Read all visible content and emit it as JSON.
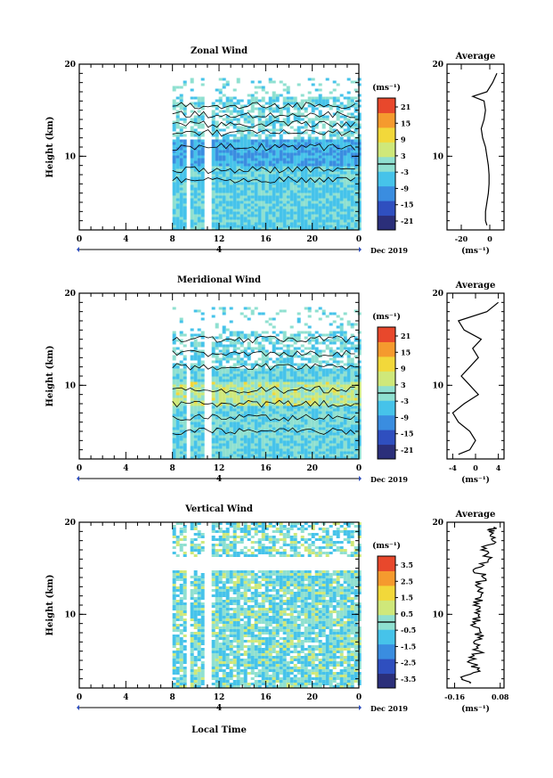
{
  "panels": [
    {
      "key": "zonal",
      "title": "Zonal Wind",
      "ylabel": "Height (km)",
      "yticks": [
        "20",
        "10"
      ],
      "xticks": [
        "0",
        "4",
        "8",
        "12",
        "16",
        "20",
        "0"
      ],
      "date_marker": "4",
      "date_label": "Dec 2019",
      "colorbar": {
        "unit": "(ms⁻¹)",
        "ticks": [
          "21",
          "15",
          "9",
          "3",
          "-3",
          "-9",
          "-15",
          "-21"
        ]
      },
      "average": {
        "title": "Average",
        "yticks": [
          "20",
          "10"
        ],
        "xticks": [
          "-20",
          "0"
        ],
        "unit": "(ms⁻¹)"
      }
    },
    {
      "key": "meridional",
      "title": "Meridional Wind",
      "ylabel": "Height (km)",
      "yticks": [
        "20",
        "10"
      ],
      "xticks": [
        "0",
        "4",
        "8",
        "12",
        "16",
        "20",
        "0"
      ],
      "date_marker": "4",
      "date_label": "Dec 2019",
      "colorbar": {
        "unit": "(ms⁻¹)",
        "ticks": [
          "21",
          "15",
          "9",
          "3",
          "-3",
          "-9",
          "-15",
          "-21"
        ]
      },
      "average": {
        "title": "Average",
        "yticks": [
          "20",
          "10"
        ],
        "xticks": [
          "-4",
          "0",
          "4"
        ],
        "unit": "(ms⁻¹)"
      }
    },
    {
      "key": "vertical",
      "title": "Vertical Wind",
      "ylabel": "Height (km)",
      "yticks": [
        "20",
        "10"
      ],
      "xticks": [
        "0",
        "4",
        "8",
        "12",
        "16",
        "20",
        "0"
      ],
      "date_marker": "4",
      "date_label": "Dec 2019",
      "colorbar": {
        "unit": "(ms⁻¹)",
        "ticks": [
          "3.5",
          "2.5",
          "1.5",
          "0.5",
          "-0.5",
          "-1.5",
          "-2.5",
          "-3.5"
        ]
      },
      "average": {
        "title": "Average",
        "yticks": [
          "20",
          "10"
        ],
        "xticks": [
          "-0.16",
          "0.08"
        ],
        "unit": "(ms⁻¹)"
      }
    }
  ],
  "xlabel": "Local Time",
  "colormap": [
    "#2b2f7a",
    "#2f4fbf",
    "#3a8de0",
    "#46c3ea",
    "#8fe0d0",
    "#cfe87a",
    "#f2d83a",
    "#f59a2e",
    "#e8482c"
  ],
  "chart_data": [
    {
      "type": "heatmap",
      "title": "Zonal Wind",
      "xlabel": "",
      "ylabel": "Height (km)",
      "x_range_hours": [
        0,
        24
      ],
      "y_range_km": [
        2,
        20
      ],
      "data_start_hour": 8,
      "color_scale": [
        -24,
        24
      ],
      "unit": "ms-1",
      "profile": {
        "title": "Average",
        "xlim": [
          -30,
          10
        ],
        "height_km": [
          2.5,
          3,
          4,
          5,
          6,
          7,
          8,
          9,
          10,
          11,
          12,
          13,
          14,
          15,
          16,
          16.5,
          17,
          18,
          19
        ],
        "values": [
          -2,
          -3,
          -3,
          -2,
          -1,
          -0.5,
          -0.5,
          -1,
          -2,
          -3,
          -5,
          -6,
          -4,
          -3,
          -4,
          -12,
          -2,
          2,
          5
        ]
      }
    },
    {
      "type": "heatmap",
      "title": "Meridional Wind",
      "xlabel": "",
      "ylabel": "Height (km)",
      "x_range_hours": [
        0,
        24
      ],
      "y_range_km": [
        2,
        20
      ],
      "data_start_hour": 8,
      "color_scale": [
        -24,
        24
      ],
      "unit": "ms-1",
      "profile": {
        "title": "Average",
        "xlim": [
          -5,
          5
        ],
        "height_km": [
          2.5,
          3,
          4,
          5,
          6,
          7,
          8,
          9,
          10,
          11,
          12,
          13,
          14,
          15,
          16,
          17,
          18,
          19
        ],
        "values": [
          -3,
          -1,
          0,
          -1,
          -3,
          -4,
          -2,
          0.5,
          -1,
          -2.5,
          -1,
          0.5,
          -0.5,
          1,
          -2,
          -3,
          2,
          4
        ]
      }
    },
    {
      "type": "heatmap",
      "title": "Vertical Wind",
      "xlabel": "Local Time",
      "ylabel": "Height (km)",
      "x_range_hours": [
        0,
        24
      ],
      "y_range_km": [
        2,
        20
      ],
      "data_start_hour": 8,
      "color_scale": [
        -4,
        4
      ],
      "unit": "ms-1",
      "profile": {
        "title": "Average",
        "xlim": [
          -0.2,
          0.1
        ],
        "height_km": [
          2.5,
          3,
          4,
          5,
          6,
          7,
          8,
          9,
          10,
          11,
          12,
          13,
          14,
          15,
          16,
          17,
          18,
          19,
          19.5
        ],
        "values": [
          -0.08,
          -0.12,
          -0.04,
          -0.08,
          -0.03,
          -0.06,
          -0.02,
          -0.05,
          -0.03,
          -0.06,
          -0.02,
          -0.04,
          -0.01,
          -0.05,
          0.02,
          -0.02,
          0.04,
          0.02,
          0.05
        ]
      }
    }
  ]
}
